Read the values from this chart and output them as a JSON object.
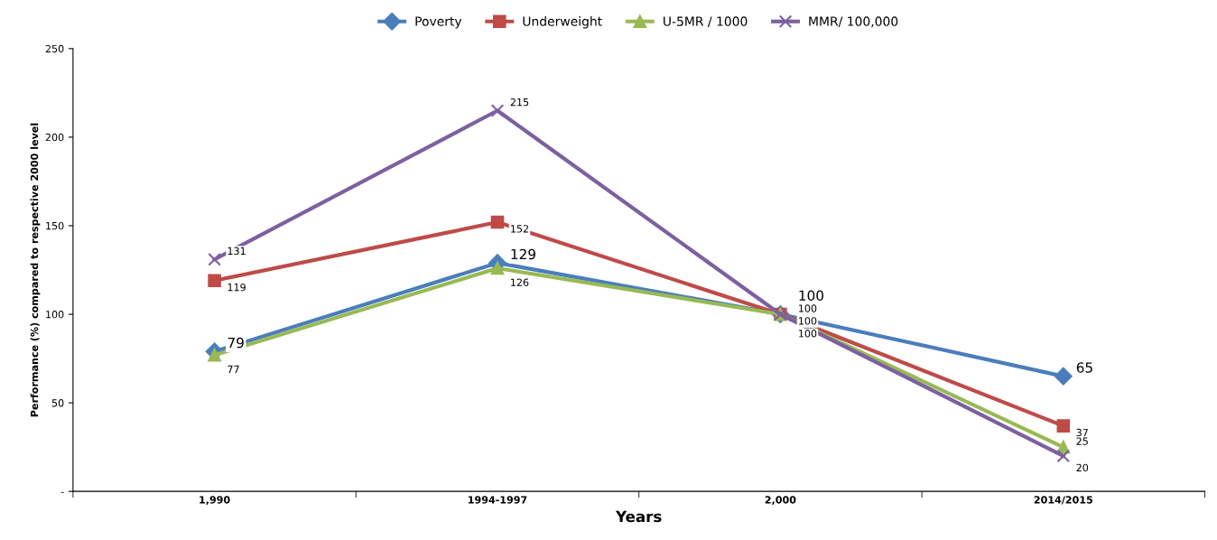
{
  "chart_data": {
    "type": "line",
    "xlabel": "Years",
    "ylabel": "Performance (%) compared to respective 2000 level",
    "categories": [
      "1,990",
      "1994-1997",
      "2,000",
      "2014/2015"
    ],
    "series": [
      {
        "name": "Poverty",
        "color": "#4a7ebb",
        "marker": "diamond",
        "values": [
          79,
          129,
          100,
          65
        ]
      },
      {
        "name": "Underweight",
        "color": "#be4b48",
        "marker": "square",
        "values": [
          119,
          152,
          100,
          37
        ]
      },
      {
        "name": "U-5MR / 1000",
        "color": "#98b954",
        "marker": "triangle",
        "values": [
          77,
          126,
          100,
          25
        ]
      },
      {
        "name": "MMR/ 100,000",
        "color": "#7d60a0",
        "marker": "cross",
        "values": [
          131,
          215,
          100,
          20
        ]
      }
    ],
    "ylim": [
      0,
      250
    ],
    "yticks": [
      {
        "value": 0,
        "label": "-"
      },
      50,
      100,
      150,
      200,
      250
    ],
    "grid": false,
    "legend": "top",
    "data_labels": true,
    "line_style": "solid"
  }
}
